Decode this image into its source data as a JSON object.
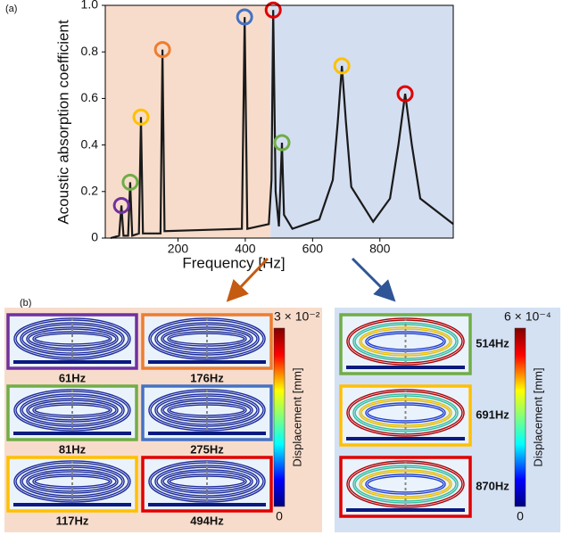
{
  "panel_a_label": "(a)",
  "panel_b_label": "(b)",
  "chart_data": {
    "type": "line",
    "xlabel": "Frequency [Hz]",
    "ylabel": "Acoustic absorption coefficient",
    "x": [
      0,
      25,
      32,
      38,
      52,
      58,
      64,
      84,
      90,
      96,
      148,
      154,
      160,
      390,
      398,
      406,
      470,
      478,
      483,
      490,
      500,
      505,
      509,
      515,
      540,
      620,
      660,
      675,
      687,
      699,
      715,
      780,
      830,
      855,
      875,
      895,
      920,
      1018
    ],
    "values": [
      0.0,
      0.01,
      0.14,
      0.01,
      0.01,
      0.24,
      0.01,
      0.02,
      0.52,
      0.02,
      0.02,
      0.81,
      0.03,
      0.04,
      0.95,
      0.04,
      0.06,
      0.25,
      0.98,
      0.2,
      0.05,
      0.25,
      0.41,
      0.1,
      0.04,
      0.08,
      0.25,
      0.5,
      0.74,
      0.5,
      0.22,
      0.07,
      0.17,
      0.4,
      0.62,
      0.4,
      0.17,
      0.06
    ],
    "color": "#1a1a1a",
    "xlim": [
      -16,
      1018
    ],
    "ylim": [
      0,
      1
    ],
    "xticks": [
      200,
      400,
      600,
      800
    ],
    "yticks": [
      0,
      0.2,
      0.4,
      0.6,
      0.8,
      {
        "value": 1,
        "label": "1.0"
      }
    ],
    "regions": [
      {
        "from": -16,
        "to": 475,
        "color": "#f8dccb"
      },
      {
        "from": 475,
        "to": 1018,
        "color": "#d4def1"
      }
    ],
    "peaks": {
      "x": [
        32,
        58,
        90,
        154,
        398,
        483,
        509,
        687,
        875
      ],
      "values": [
        0.14,
        0.24,
        0.52,
        0.81,
        0.95,
        0.98,
        0.41,
        0.74,
        0.62
      ],
      "colors": [
        "#7030a0",
        "#70ad47",
        "#ffc000",
        "#ed7d31",
        "#4472c4",
        "#e00000",
        "#70ad47",
        "#ffc000",
        "#e00000"
      ]
    }
  },
  "left_group": {
    "colorbar_max": "3 × 10⁻²",
    "colorbar_min": "0",
    "colorbar_label": "Displacement [mm]",
    "tiles": [
      {
        "label": "61Hz",
        "color": "#7030a0"
      },
      {
        "label": "176Hz",
        "color": "#ed7d31"
      },
      {
        "label": "81Hz",
        "color": "#70ad47"
      },
      {
        "label": "275Hz",
        "color": "#4472c4"
      },
      {
        "label": "117Hz",
        "color": "#ffc000"
      },
      {
        "label": "494Hz",
        "color": "#e00000"
      }
    ]
  },
  "right_group": {
    "colorbar_max": "6 × 10⁻⁴",
    "colorbar_min": "0",
    "colorbar_label": "Displacement [mm]",
    "tiles": [
      {
        "label": "514Hz",
        "color": "#70ad47"
      },
      {
        "label": "691Hz",
        "color": "#ffc000"
      },
      {
        "label": "870Hz",
        "color": "#e00000"
      }
    ]
  }
}
